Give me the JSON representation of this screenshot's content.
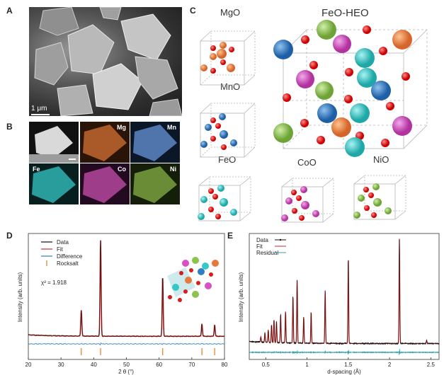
{
  "panels": {
    "a": "A",
    "b": "B",
    "c": "C",
    "d": "D",
    "e": "E"
  },
  "sem": {
    "scale_label": "1 μm"
  },
  "eds": {
    "labels": [
      "Mg",
      "Mn",
      "Fe",
      "Co",
      "Ni"
    ]
  },
  "structures": {
    "mgo": "MgO",
    "mno": "MnO",
    "feo": "FeO",
    "coo": "CoO",
    "nio": "NiO",
    "heo": "FeO-HEO"
  },
  "colors": {
    "oxygen": "#d81b1b",
    "mg": "#e8793a",
    "mn": "#2f7fc1",
    "fe": "#33c9c9",
    "co": "#d84fc6",
    "ni": "#8ac44a"
  },
  "chart_data": [
    {
      "type": "line",
      "panel": "D",
      "xlabel": "2 θ (°)",
      "ylabel": "Intensity (arb. units)",
      "xlim": [
        20,
        80
      ],
      "xticks": [
        20,
        30,
        40,
        50,
        60,
        70,
        80
      ],
      "annotation": "χ² = 1.918",
      "legend": [
        "Data",
        "Fit",
        "Difference",
        "Rocksalt"
      ],
      "peaks": [
        {
          "x": 36.2,
          "y": 0.27
        },
        {
          "x": 42.1,
          "y": 1.0
        },
        {
          "x": 61.1,
          "y": 0.62
        },
        {
          "x": 73.1,
          "y": 0.13
        },
        {
          "x": 77.0,
          "y": 0.12
        }
      ],
      "baseline": 0.02,
      "rocksalt_ticks": [
        36.2,
        42.1,
        61.1,
        73.1,
        77.0
      ]
    },
    {
      "type": "line",
      "panel": "E",
      "xlabel": "d-spacing (Å)",
      "ylabel": "Intensity (arb. units)",
      "xlim": [
        0.3,
        2.6
      ],
      "xticks": [
        0.5,
        1,
        1.5,
        2,
        2.5
      ],
      "xtick_labels": [
        "0.5",
        "1",
        "1.5",
        "2",
        "2.5"
      ],
      "legend": [
        "Data",
        "Fit",
        "Residual"
      ],
      "peaks": [
        {
          "x": 0.44,
          "y": 0.05
        },
        {
          "x": 0.49,
          "y": 0.09
        },
        {
          "x": 0.53,
          "y": 0.12
        },
        {
          "x": 0.57,
          "y": 0.17
        },
        {
          "x": 0.6,
          "y": 0.22
        },
        {
          "x": 0.63,
          "y": 0.2
        },
        {
          "x": 0.68,
          "y": 0.27
        },
        {
          "x": 0.74,
          "y": 0.3
        },
        {
          "x": 0.83,
          "y": 0.45
        },
        {
          "x": 0.88,
          "y": 0.6
        },
        {
          "x": 0.96,
          "y": 0.25
        },
        {
          "x": 1.05,
          "y": 0.3
        },
        {
          "x": 1.22,
          "y": 0.5
        },
        {
          "x": 1.5,
          "y": 0.82
        },
        {
          "x": 2.12,
          "y": 1.0
        },
        {
          "x": 2.45,
          "y": 0.03
        }
      ],
      "baseline": 0.03
    }
  ]
}
